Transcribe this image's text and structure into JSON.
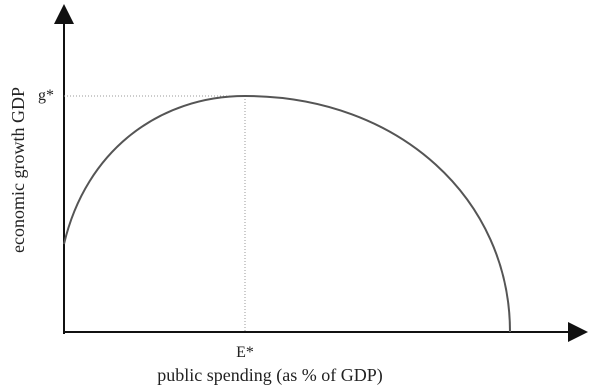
{
  "diagram": {
    "xlabel": "public spending (as % of GDP)",
    "ylabel": "economic growth GDP",
    "x_marker": "E*",
    "y_marker": "g*"
  },
  "colors": {
    "curve": "#555555",
    "axis": "#111111",
    "guide": "#999999"
  }
}
